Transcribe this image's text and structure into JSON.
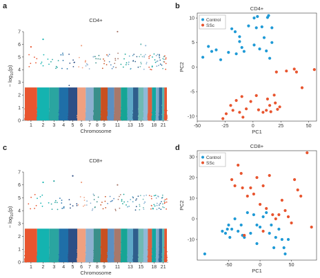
{
  "colors": {
    "control": "#1f9ad6",
    "ssc": "#e8552f",
    "manhattan_palette": [
      "#e8552f",
      "#14b3b0",
      "#2aa5a0",
      "#1f6fa8",
      "#2d4f86",
      "#f0a080",
      "#8cb0d0",
      "#3a8f8a",
      "#c85020",
      "#5c8fc0",
      "#a8786a",
      "#16a595",
      "#5ea8c8",
      "#2f5f8c",
      "#6fb9b4",
      "#90b8d8",
      "#e06040",
      "#12a7a2",
      "#7aa8c8",
      "#2c6c9c",
      "#58b4b2"
    ]
  },
  "chart_data": [
    {
      "panel": "a",
      "type": "scatter",
      "subtype": "manhattan",
      "title": "CD4+",
      "xlabel": "Chromosome",
      "ylabel": "− log10(p)",
      "ylabel_parts": {
        "a": "− log",
        "sub": "10",
        "b": "(p)"
      },
      "ylim": [
        0,
        7
      ],
      "yticks": [
        0,
        1,
        2,
        3,
        4,
        5,
        6,
        7
      ],
      "xtick_labels": [
        "1",
        "2",
        "3",
        "4",
        "5",
        "6",
        "7",
        "8",
        "9",
        "11",
        "13",
        "15",
        "18",
        "21"
      ],
      "xtick_chromosomes": [
        1,
        2,
        3,
        4,
        5,
        6,
        7,
        8,
        9,
        11,
        13,
        15,
        18,
        21
      ],
      "peaks": [
        {
          "chromosome": 1,
          "value": 5.8
        },
        {
          "chromosome": 2,
          "value": 6.4
        },
        {
          "chromosome": 6,
          "value": 5.9
        },
        {
          "chromosome": 11,
          "value": 7.0
        },
        {
          "chromosome": 15,
          "value": 6.0
        },
        {
          "chromosome": 16,
          "value": 5.9
        }
      ]
    },
    {
      "panel": "b",
      "type": "scatter",
      "title": "CD4+",
      "xlabel": "PC1",
      "ylabel": "PC2",
      "xlim": [
        -50,
        57
      ],
      "ylim": [
        -11,
        11
      ],
      "xticks": [
        -50,
        -25,
        0,
        25,
        50
      ],
      "yticks": [
        -10,
        -5,
        0,
        5,
        10
      ],
      "legend": "top-left",
      "series": [
        {
          "name": "Control",
          "points": [
            [
              -45,
              2
            ],
            [
              -40,
              4.2
            ],
            [
              -37,
              3.2
            ],
            [
              -33,
              3.5
            ],
            [
              -29,
              1.5
            ],
            [
              -22,
              3
            ],
            [
              -19,
              7.8
            ],
            [
              -16,
              7.2
            ],
            [
              -15,
              2.7
            ],
            [
              -12,
              6.2
            ],
            [
              -12,
              5.2
            ],
            [
              -10,
              4
            ],
            [
              -8,
              3.2
            ],
            [
              -4,
              8.4
            ],
            [
              1,
              10
            ],
            [
              1,
              4.5
            ],
            [
              3,
              8
            ],
            [
              4,
              10.3
            ],
            [
              6,
              3.7
            ],
            [
              8,
              8.2
            ],
            [
              10,
              6
            ],
            [
              12,
              3.3
            ],
            [
              13,
              10.1
            ],
            [
              14,
              10.5
            ],
            [
              15,
              1.8
            ],
            [
              17,
              8
            ],
            [
              17,
              5
            ]
          ]
        },
        {
          "name": "SSc",
          "points": [
            [
              -27,
              -10.5
            ],
            [
              -24,
              -9.5
            ],
            [
              -20,
              -7.8
            ],
            [
              -18,
              -8.8
            ],
            [
              -15,
              -6.8
            ],
            [
              -12,
              -9.2
            ],
            [
              -10,
              -6
            ],
            [
              -9,
              -10.2
            ],
            [
              -6,
              -8.5
            ],
            [
              -2,
              -7
            ],
            [
              3,
              -5.8
            ],
            [
              5,
              -8.7
            ],
            [
              9,
              -9.2
            ],
            [
              12,
              -8.8
            ],
            [
              13,
              -6.5
            ],
            [
              15,
              -7.8
            ],
            [
              16,
              -9.1
            ],
            [
              19,
              -5.7
            ],
            [
              20,
              -7.3
            ],
            [
              22,
              -8.6
            ],
            [
              24,
              -8.1
            ],
            [
              21,
              -1
            ],
            [
              30,
              -0.8
            ],
            [
              37,
              -0.4
            ],
            [
              39,
              -1
            ],
            [
              44,
              -4.2
            ],
            [
              55,
              -0.5
            ]
          ]
        }
      ]
    },
    {
      "panel": "c",
      "type": "scatter",
      "subtype": "manhattan",
      "title": "CD8+",
      "xlabel": "Chromosome",
      "ylabel": "− log10(p)",
      "ylabel_parts": {
        "a": "− log",
        "sub": "10",
        "b": "(p)"
      },
      "ylim": [
        0,
        7
      ],
      "yticks": [
        0,
        1,
        2,
        3,
        4,
        5,
        6,
        7
      ],
      "xtick_labels": [
        "1",
        "2",
        "3",
        "4",
        "5",
        "6",
        "7",
        "8",
        "9",
        "11",
        "13",
        "15",
        "18",
        "21"
      ],
      "xtick_chromosomes": [
        1,
        2,
        3,
        4,
        5,
        6,
        7,
        8,
        9,
        11,
        13,
        15,
        18,
        21
      ],
      "peaks": [
        {
          "chromosome": 2,
          "value": 6.2
        },
        {
          "chromosome": 3,
          "value": 6.3
        },
        {
          "chromosome": 5,
          "value": 6.7
        },
        {
          "chromosome": 6,
          "value": 6.2
        },
        {
          "chromosome": 11,
          "value": 6.0
        }
      ]
    },
    {
      "panel": "d",
      "type": "scatter",
      "title": "CD8+",
      "xlabel": "PC1",
      "ylabel": "PC2",
      "xlim": [
        -100,
        90
      ],
      "ylim": [
        -20,
        33
      ],
      "xticks": [
        -50,
        0,
        50
      ],
      "yticks": [
        -10,
        0,
        10,
        20,
        30
      ],
      "legend": "top-left",
      "series": [
        {
          "name": "Control",
          "points": [
            [
              -88,
              -17
            ],
            [
              -60,
              -6
            ],
            [
              -55,
              -7
            ],
            [
              -52,
              -5
            ],
            [
              -50,
              -3
            ],
            [
              -48,
              -9
            ],
            [
              -45,
              -5
            ],
            [
              -40,
              0
            ],
            [
              -35,
              -6
            ],
            [
              -30,
              -3
            ],
            [
              -25,
              -9
            ],
            [
              -20,
              3
            ],
            [
              -15,
              -7
            ],
            [
              -10,
              2
            ],
            [
              -5,
              -3
            ],
            [
              0,
              -4
            ],
            [
              5,
              1
            ],
            [
              10,
              3
            ],
            [
              15,
              -7
            ],
            [
              18,
              -3
            ],
            [
              22,
              -14
            ],
            [
              25,
              -9
            ],
            [
              30,
              -5
            ],
            [
              35,
              -10
            ],
            [
              38,
              -14
            ],
            [
              40,
              -17
            ],
            [
              45,
              -10
            ],
            [
              -28,
              -8
            ],
            [
              -5,
              -12
            ]
          ]
        },
        {
          "name": "SSc",
          "points": [
            [
              -45,
              19
            ],
            [
              -40,
              16
            ],
            [
              -35,
              26
            ],
            [
              -30,
              22
            ],
            [
              -28,
              15
            ],
            [
              -20,
              11
            ],
            [
              -15,
              15
            ],
            [
              -10,
              12
            ],
            [
              -5,
              20
            ],
            [
              0,
              7
            ],
            [
              5,
              16
            ],
            [
              10,
              5
            ],
            [
              15,
              21
            ],
            [
              20,
              2
            ],
            [
              25,
              0
            ],
            [
              30,
              2
            ],
            [
              35,
              9
            ],
            [
              40,
              4
            ],
            [
              45,
              1
            ],
            [
              50,
              -2
            ],
            [
              55,
              19
            ],
            [
              60,
              14
            ],
            [
              65,
              11
            ],
            [
              75,
              32
            ],
            [
              82,
              -4
            ],
            [
              -25,
              -8
            ],
            [
              5,
              -6
            ]
          ]
        }
      ]
    }
  ],
  "panel_labels": [
    "a",
    "b",
    "c",
    "d"
  ],
  "legend": {
    "control": "Control",
    "ssc": "SSc"
  }
}
